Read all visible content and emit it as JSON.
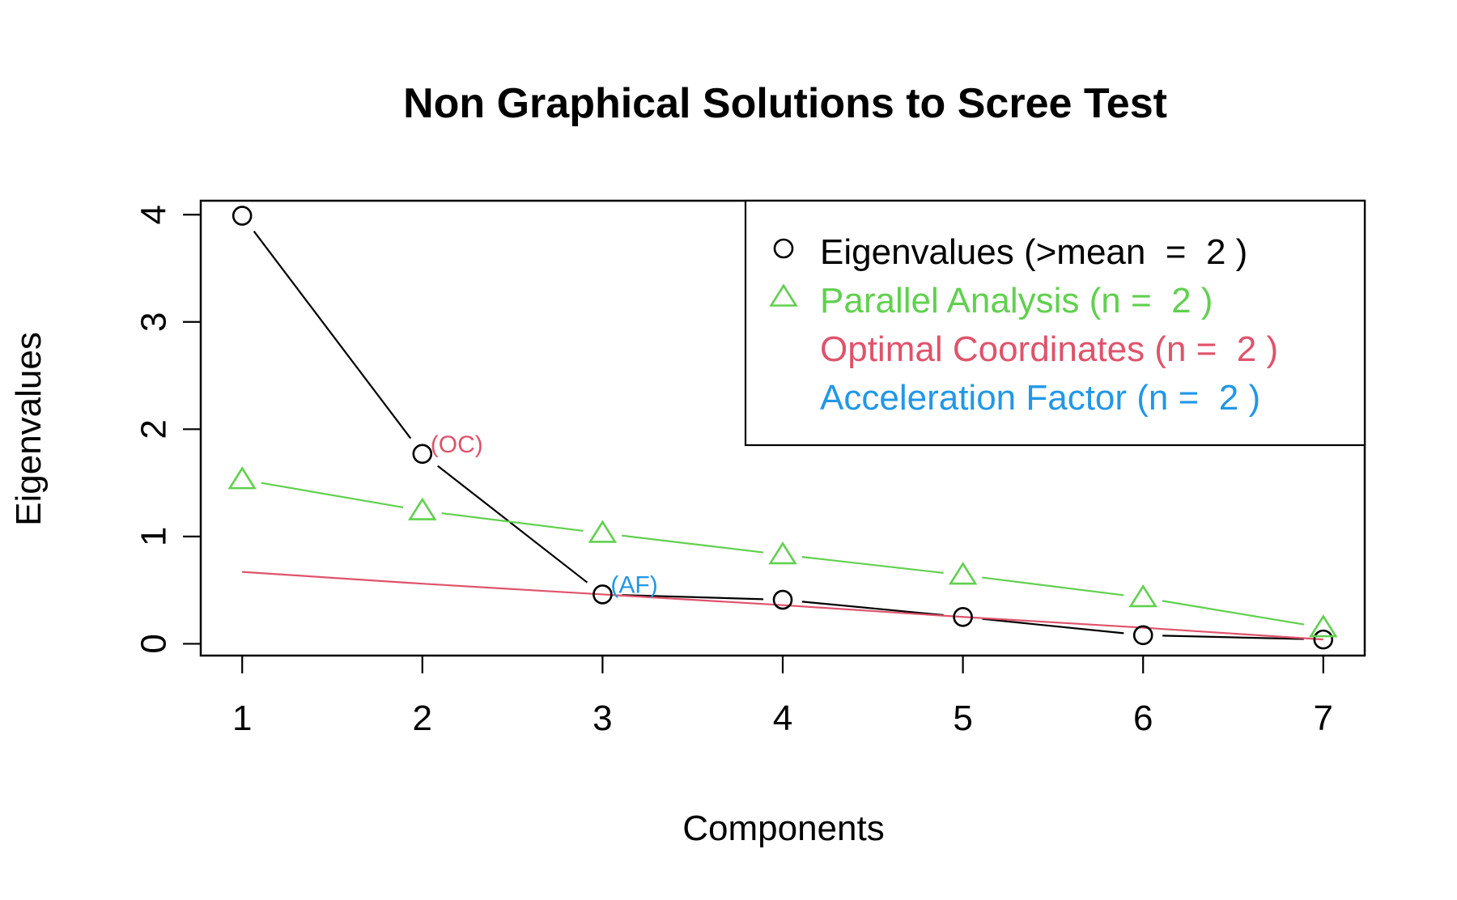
{
  "chart_data": {
    "type": "line",
    "title": "Non Graphical Solutions to Scree Test",
    "xlabel": "Components",
    "ylabel": "Eigenvalues",
    "x": [
      1,
      2,
      3,
      4,
      5,
      6,
      7
    ],
    "xlim": [
      0.77,
      7.23
    ],
    "ylim": [
      -0.11,
      4.13
    ],
    "xticks": [
      "1",
      "2",
      "3",
      "4",
      "5",
      "6",
      "7"
    ],
    "yticks": [
      "0",
      "1",
      "2",
      "3",
      "4"
    ],
    "series": [
      {
        "name": "Eigenvalues",
        "marker": "circle",
        "color": "#000000",
        "values": [
          3.99,
          1.77,
          0.46,
          0.41,
          0.25,
          0.08,
          0.04
        ]
      },
      {
        "name": "Parallel Analysis",
        "marker": "triangle",
        "color": "#61D04F",
        "values": [
          1.53,
          1.24,
          1.03,
          0.83,
          0.64,
          0.43,
          0.15
        ]
      },
      {
        "name": "Optimal Coordinates",
        "marker": "line",
        "color": "#DF536B",
        "values": [
          0.67,
          0.56,
          0.46,
          0.36,
          0.25,
          0.15,
          0.04
        ]
      }
    ],
    "legend": {
      "position": "top-right",
      "entries": [
        {
          "text": "Eigenvalues (>mean  =  2 )",
          "color": "#000000",
          "symbol": "circle"
        },
        {
          "text": "Parallel Analysis (n =  2 )",
          "color": "#61D04F",
          "symbol": "triangle"
        },
        {
          "text": "Optimal Coordinates (n =  2 )",
          "color": "#DF536B",
          "symbol": "none"
        },
        {
          "text": "Acceleration Factor (n =  2 )",
          "color": "#2297E6",
          "symbol": "none"
        }
      ]
    },
    "annotations": [
      {
        "text": "(OC)",
        "x": 2,
        "y": 1.77,
        "color": "#DF536B"
      },
      {
        "text": "(AF)",
        "x": 3,
        "y": 0.46,
        "color": "#2297E6"
      }
    ]
  }
}
